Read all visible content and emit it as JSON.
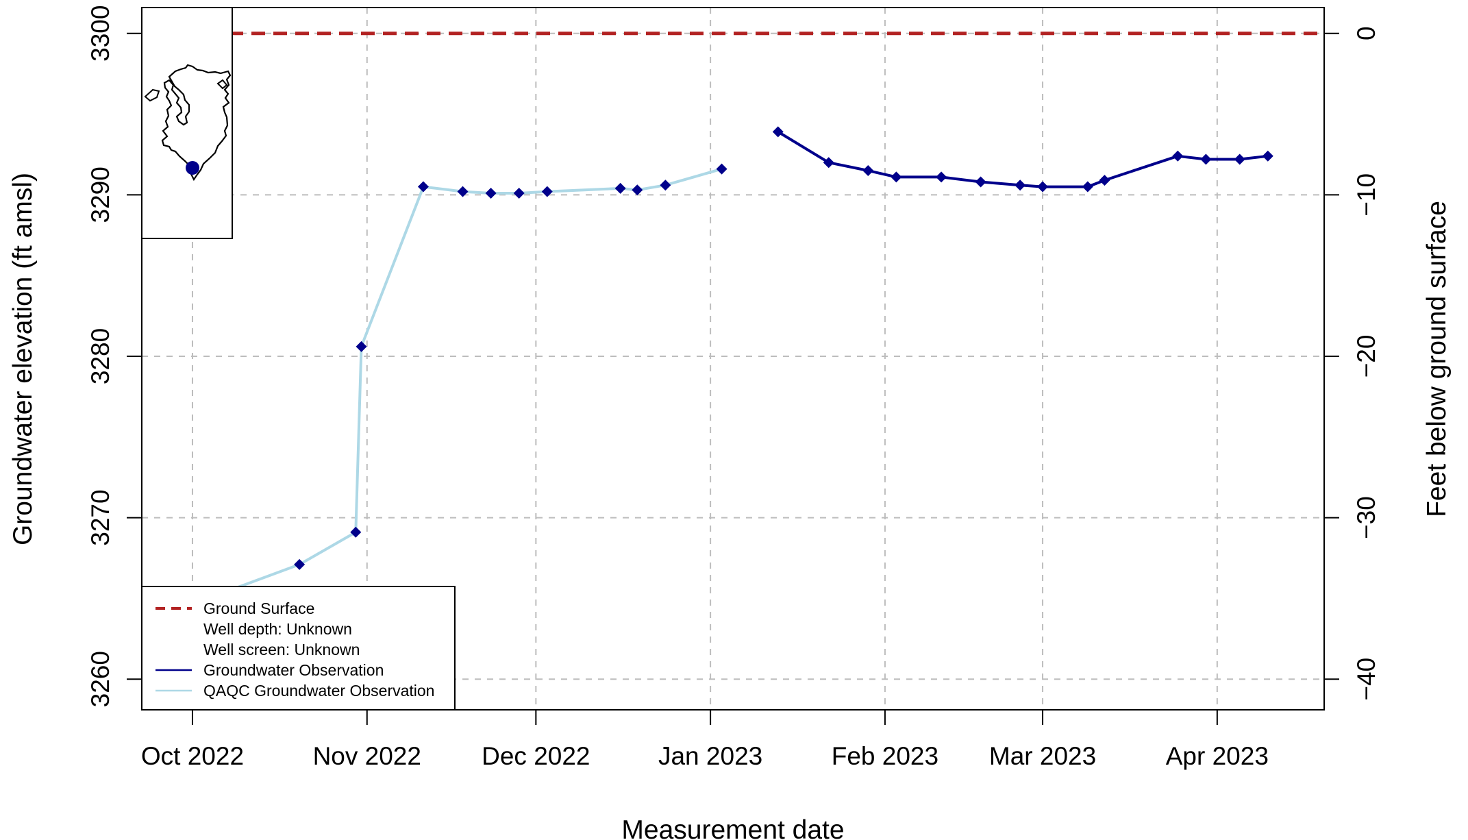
{
  "chart_data": {
    "type": "line",
    "xlabel": "Measurement date",
    "ylabel": "Groundwater elevation (ft amsl)",
    "y2label": "Feet below ground surface",
    "xlim": [
      "2022-09-22",
      "2023-04-20"
    ],
    "ylim": [
      3258.1,
      3301.6
    ],
    "y2lim": [
      -41.9,
      1.6
    ],
    "ground_surface": 3300,
    "x_ticks": [
      {
        "date": "2022-10-01",
        "label": "Oct 2022"
      },
      {
        "date": "2022-11-01",
        "label": "Nov 2022"
      },
      {
        "date": "2022-12-01",
        "label": "Dec 2022"
      },
      {
        "date": "2023-01-01",
        "label": "Jan 2023"
      },
      {
        "date": "2023-02-01",
        "label": "Feb 2023"
      },
      {
        "date": "2023-03-01",
        "label": "Mar 2023"
      },
      {
        "date": "2023-04-01",
        "label": "Apr 2023"
      }
    ],
    "y_ticks": [
      {
        "value": 3260,
        "label": "3260"
      },
      {
        "value": 3270,
        "label": "3270"
      },
      {
        "value": 3280,
        "label": "3280"
      },
      {
        "value": 3290,
        "label": "3290"
      },
      {
        "value": 3300,
        "label": "3300"
      }
    ],
    "y2_ticks": [
      {
        "value": -40,
        "label": "−40"
      },
      {
        "value": -30,
        "label": "−30"
      },
      {
        "value": -20,
        "label": "−20"
      },
      {
        "value": -10,
        "label": "−10"
      },
      {
        "value": 0,
        "label": "0"
      }
    ],
    "grid": true,
    "legend": {
      "position": "bottom-left",
      "entries": [
        {
          "label": "Ground Surface",
          "style": "dashed",
          "color": "#b22222"
        },
        {
          "label": "Well depth: Unknown",
          "style": "none"
        },
        {
          "label": "Well screen: Unknown",
          "style": "none"
        },
        {
          "label": "Groundwater Observation",
          "style": "solid",
          "color": "#00008b"
        },
        {
          "label": "QAQC Groundwater Observation",
          "style": "solid",
          "color": "#add8e6"
        }
      ]
    },
    "series": [
      {
        "name": "QAQC Groundwater Observation",
        "color": "#add8e6",
        "marker_color": "#00008b",
        "points": [
          {
            "x": "2022-09-22",
            "y": 3263.5
          },
          {
            "x": "2022-10-20",
            "y": 3267.1
          },
          {
            "x": "2022-10-30",
            "y": 3269.1
          },
          {
            "x": "2022-10-31",
            "y": 3280.6
          },
          {
            "x": "2022-11-11",
            "y": 3290.5
          },
          {
            "x": "2022-11-18",
            "y": 3290.2
          },
          {
            "x": "2022-11-23",
            "y": 3290.1
          },
          {
            "x": "2022-11-28",
            "y": 3290.1
          },
          {
            "x": "2022-12-03",
            "y": 3290.2
          },
          {
            "x": "2022-12-16",
            "y": 3290.4
          },
          {
            "x": "2022-12-19",
            "y": 3290.3
          },
          {
            "x": "2022-12-24",
            "y": 3290.6
          },
          {
            "x": "2023-01-03",
            "y": 3291.6
          }
        ]
      },
      {
        "name": "Groundwater Observation",
        "color": "#00008b",
        "marker_color": "#00008b",
        "points": [
          {
            "x": "2023-01-13",
            "y": 3293.9
          },
          {
            "x": "2023-01-22",
            "y": 3292.0
          },
          {
            "x": "2023-01-29",
            "y": 3291.5
          },
          {
            "x": "2023-02-03",
            "y": 3291.1
          },
          {
            "x": "2023-02-11",
            "y": 3291.1
          },
          {
            "x": "2023-02-18",
            "y": 3290.8
          },
          {
            "x": "2023-02-25",
            "y": 3290.6
          },
          {
            "x": "2023-03-01",
            "y": 3290.5
          },
          {
            "x": "2023-03-09",
            "y": 3290.5
          },
          {
            "x": "2023-03-12",
            "y": 3290.9
          },
          {
            "x": "2023-03-25",
            "y": 3292.4
          },
          {
            "x": "2023-03-30",
            "y": 3292.2
          },
          {
            "x": "2023-04-05",
            "y": 3292.2
          },
          {
            "x": "2023-04-10",
            "y": 3292.4
          }
        ]
      }
    ]
  }
}
